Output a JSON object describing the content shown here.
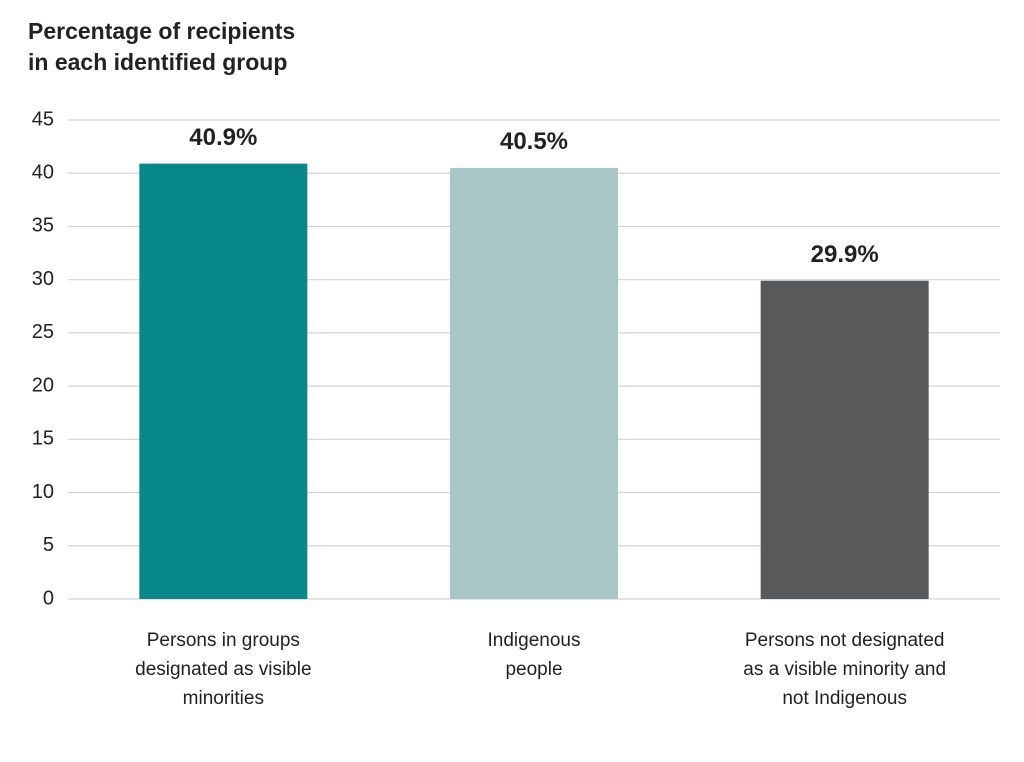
{
  "chart_data": {
    "type": "bar",
    "title": "Percentage of recipients in each identified group",
    "categories": [
      "Persons in groups designated as visible minorities",
      "Indigenous people",
      "Persons not designated as a visible minority and not Indigenous"
    ],
    "values": [
      40.9,
      40.5,
      29.9
    ],
    "value_labels": [
      "40.9%",
      "40.5%",
      "29.9%"
    ],
    "colors": [
      "#08888a",
      "#a8c5c8",
      "#58595b"
    ],
    "ylim": [
      0,
      45
    ],
    "yticks": [
      0,
      5,
      10,
      15,
      20,
      25,
      30,
      35,
      40,
      45
    ],
    "grid": true
  }
}
